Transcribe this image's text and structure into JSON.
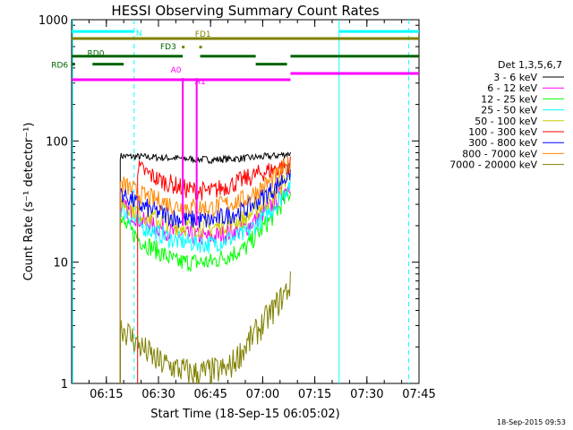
{
  "chart_data": {
    "type": "line",
    "title": "HESSI Observing Summary Count Rates",
    "xlabel": "Start Time (18-Sep-15 06:05:02)",
    "ylabel": "Count Rate (s⁻¹ detector⁻¹)",
    "yscale": "log",
    "ylim": [
      1,
      1000
    ],
    "y_ticks": [
      "1",
      "10",
      "100",
      "1000"
    ],
    "xlim_minutes": [
      "06:05",
      "07:45"
    ],
    "x_ticks": [
      "06:15",
      "06:30",
      "06:45",
      "07:00",
      "07:15",
      "07:30",
      "07:45"
    ],
    "legend_title": "Det 1,3,5,6,7",
    "legend_position": "right",
    "series": [
      {
        "name": "3 - 6 keV",
        "color": "#000000",
        "points": [
          [
            "06:19",
            75
          ],
          [
            "06:25",
            74
          ],
          [
            "06:35",
            72
          ],
          [
            "06:45",
            70
          ],
          [
            "06:55",
            72
          ],
          [
            "07:03",
            75
          ],
          [
            "07:08",
            79
          ]
        ]
      },
      {
        "name": "6 - 12 keV",
        "color": "#ff00ff",
        "points": [
          [
            "06:19",
            30
          ],
          [
            "06:25",
            22
          ],
          [
            "06:35",
            17
          ],
          [
            "06:45",
            16
          ],
          [
            "06:55",
            19
          ],
          [
            "07:03",
            30
          ],
          [
            "07:08",
            45
          ]
        ]
      },
      {
        "name": "12 - 25 keV",
        "color": "#00ff00",
        "points": [
          [
            "06:19",
            22
          ],
          [
            "06:25",
            15
          ],
          [
            "06:35",
            10
          ],
          [
            "06:45",
            10
          ],
          [
            "06:55",
            13
          ],
          [
            "07:03",
            24
          ],
          [
            "07:08",
            38
          ]
        ]
      },
      {
        "name": "25 - 50 keV",
        "color": "#00ffff",
        "points": [
          [
            "06:19",
            28
          ],
          [
            "06:25",
            20
          ],
          [
            "06:35",
            15
          ],
          [
            "06:45",
            14
          ],
          [
            "06:55",
            17
          ],
          [
            "07:03",
            28
          ],
          [
            "07:08",
            45
          ]
        ]
      },
      {
        "name": "50 - 100 keV",
        "color": "#cccc00",
        "points": [
          [
            "06:19",
            32
          ],
          [
            "06:25",
            25
          ],
          [
            "06:35",
            20
          ],
          [
            "06:45",
            19
          ],
          [
            "06:55",
            23
          ],
          [
            "07:03",
            35
          ],
          [
            "07:08",
            55
          ]
        ]
      },
      {
        "name": "100 - 300 keV",
        "color": "#ff0000",
        "points": [
          [
            "06:24",
            60
          ],
          [
            "06:30",
            48
          ],
          [
            "06:38",
            40
          ],
          [
            "06:45",
            38
          ],
          [
            "06:52",
            45
          ],
          [
            "07:00",
            55
          ],
          [
            "07:08",
            64
          ]
        ]
      },
      {
        "name": "300 - 800 keV",
        "color": "#0000ff",
        "points": [
          [
            "06:19",
            38
          ],
          [
            "06:25",
            29
          ],
          [
            "06:35",
            23
          ],
          [
            "06:45",
            22
          ],
          [
            "06:55",
            27
          ],
          [
            "07:03",
            40
          ],
          [
            "07:08",
            56
          ]
        ]
      },
      {
        "name": "800 - 7000 keV",
        "color": "#ff8800",
        "points": [
          [
            "06:19",
            45
          ],
          [
            "06:25",
            36
          ],
          [
            "06:35",
            29
          ],
          [
            "06:45",
            28
          ],
          [
            "06:55",
            33
          ],
          [
            "07:03",
            48
          ],
          [
            "07:08",
            66
          ]
        ]
      },
      {
        "name": "7000 - 20000 keV",
        "color": "#808000",
        "points": [
          [
            "06:19",
            3
          ],
          [
            "06:25",
            2
          ],
          [
            "06:30",
            1.5
          ],
          [
            "06:40",
            1.2
          ],
          [
            "06:50",
            1.3
          ],
          [
            "06:58",
            2.6
          ],
          [
            "07:03",
            4
          ],
          [
            "07:08",
            6.5
          ]
        ]
      }
    ],
    "spikes": [
      {
        "series": "6 - 12 keV",
        "x": "06:37",
        "y": 330
      },
      {
        "series": "6 - 12 keV",
        "x": "06:41",
        "y": 330
      }
    ],
    "status_bars": [
      {
        "label": "N",
        "color": "#00ffff",
        "y": 800,
        "segments": [
          [
            "06:05",
            "06:23"
          ],
          [
            "07:22",
            "07:45"
          ]
        ]
      },
      {
        "label": "FD1",
        "color": "#808000",
        "y": 700,
        "segments": [
          [
            "06:05",
            "07:45"
          ]
        ]
      },
      {
        "label": "FD3",
        "color": "#006400",
        "y": 600,
        "segments": []
      },
      {
        "label": "RD0",
        "color": "#006400",
        "y": 500,
        "segments": [
          [
            "06:05",
            "06:37"
          ],
          [
            "06:42",
            "06:58"
          ],
          [
            "07:08",
            "07:45"
          ]
        ]
      },
      {
        "label": "RD6",
        "color": "#006400",
        "y": 430,
        "segments": [
          [
            "06:05",
            "06:06"
          ],
          [
            "06:11",
            "06:20"
          ],
          [
            "06:58",
            "07:07"
          ]
        ]
      },
      {
        "label": "A0",
        "color": "#ff00ff",
        "y": 320,
        "segments": [
          [
            "06:05",
            "07:08"
          ]
        ]
      },
      {
        "label": "A1",
        "color": "#ff00ff",
        "y": 360,
        "segments": [
          [
            "07:08",
            "07:45"
          ]
        ]
      }
    ],
    "vertical_lines": [
      {
        "x": "06:23",
        "color": "#00ffff",
        "style": "dashed"
      },
      {
        "x": "07:22",
        "color": "#00ffff",
        "style": "solid"
      },
      {
        "x": "07:42",
        "color": "#00ffff",
        "style": "dashed"
      }
    ]
  },
  "footer": {
    "timestamp": "18-Sep-2015 09:53"
  }
}
